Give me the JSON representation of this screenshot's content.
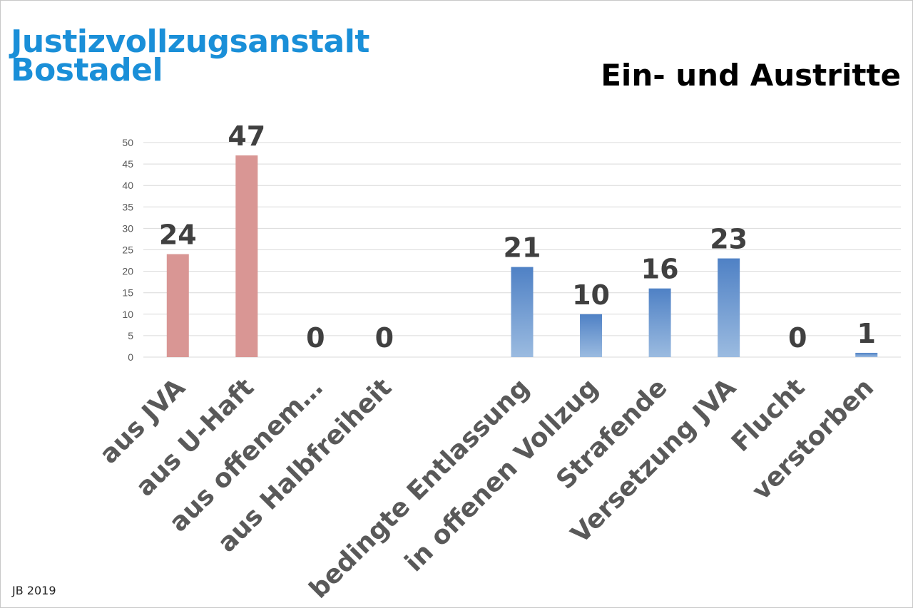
{
  "header": {
    "org_line1": "Justizvollzugsanstalt",
    "org_line2": "Bostadel",
    "title": "Ein- und Austritte"
  },
  "footer": {
    "text": "JB 2019"
  },
  "colors": {
    "eintritte": "#d99694",
    "austritte_top": "#4f81c5",
    "austritte_bottom": "#9bbbe0",
    "label": "#404040",
    "grid": "#d9d9d9"
  },
  "chart_data": {
    "type": "bar",
    "title": "Ein- und Austritte",
    "xlabel": "",
    "ylabel": "",
    "ylim": [
      0,
      50
    ],
    "yticks": [
      0,
      5,
      10,
      15,
      20,
      25,
      30,
      35,
      40,
      45,
      50
    ],
    "grid": true,
    "categories": [
      "aus JVA",
      "aus U-Haft",
      "aus offenem…",
      "aus Halbfreiheit",
      "",
      "bedingte Entlassung",
      "in offenen Vollzug",
      "Strafende",
      "Versetzung JVA",
      "Flucht",
      "verstorben"
    ],
    "series": [
      {
        "values": [
          24,
          47,
          0,
          0,
          null,
          null,
          null,
          null,
          null,
          null,
          null
        ],
        "color": "#d99694"
      },
      {
        "values": [
          null,
          null,
          null,
          null,
          null,
          21,
          10,
          16,
          23,
          0,
          1
        ],
        "color": "#4f81c5"
      }
    ]
  }
}
